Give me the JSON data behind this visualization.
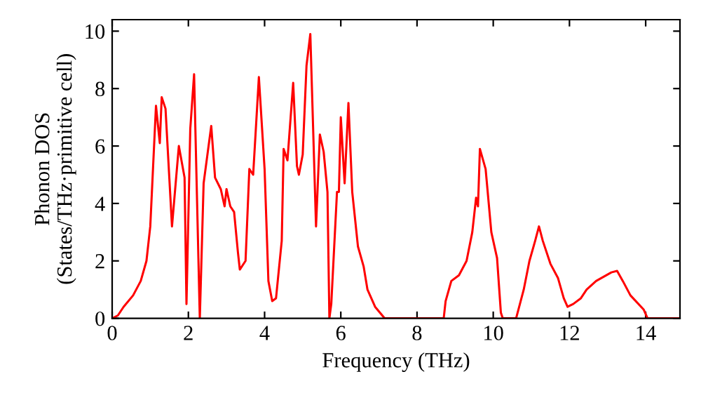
{
  "chart_data": {
    "type": "line",
    "xlabel": "Frequency (THz)",
    "ylabel": "Phonon DOS\n(States/THz·primitive cell)",
    "xlim": [
      0,
      14.9
    ],
    "ylim": [
      0,
      10.4
    ],
    "xticks": [
      0,
      2,
      4,
      6,
      8,
      10,
      12,
      14
    ],
    "yticks": [
      0,
      2,
      4,
      6,
      8,
      10
    ],
    "grid": false,
    "marker": "none",
    "line_style": "solid",
    "series": [
      {
        "color": "#ff0000",
        "x": [
          0,
          0.15,
          0.3,
          0.55,
          0.75,
          0.9,
          1.0,
          1.15,
          1.25,
          1.3,
          1.4,
          1.57,
          1.75,
          1.9,
          1.95,
          2.05,
          2.15,
          2.3,
          2.4,
          2.6,
          2.7,
          2.85,
          2.95,
          3.0,
          3.1,
          3.2,
          3.3,
          3.35,
          3.5,
          3.6,
          3.7,
          3.85,
          4.0,
          4.1,
          4.2,
          4.3,
          4.45,
          4.5,
          4.6,
          4.75,
          4.85,
          4.9,
          5.0,
          5.1,
          5.2,
          5.35,
          5.45,
          5.55,
          5.65,
          5.7,
          5.75,
          5.9,
          5.95,
          6.0,
          6.1,
          6.2,
          6.3,
          6.45,
          6.6,
          6.7,
          6.9,
          7.15,
          8.7,
          8.75,
          8.9,
          9.1,
          9.3,
          9.45,
          9.55,
          9.6,
          9.65,
          9.8,
          9.95,
          10.1,
          10.2,
          10.25,
          10.6,
          10.8,
          10.95,
          11.1,
          11.2,
          11.3,
          11.5,
          11.7,
          11.85,
          11.95,
          12.1,
          12.3,
          12.45,
          12.7,
          13.1,
          13.25,
          13.4,
          13.6,
          13.95,
          14.05,
          14.9
        ],
        "values": [
          0,
          0.1,
          0.4,
          0.8,
          1.3,
          2.0,
          3.2,
          7.4,
          6.1,
          7.7,
          7.3,
          3.2,
          6.0,
          4.9,
          0.5,
          6.6,
          8.5,
          0,
          4.7,
          6.7,
          4.9,
          4.5,
          3.9,
          4.5,
          3.9,
          3.7,
          2.3,
          1.7,
          2.0,
          5.2,
          5.0,
          8.4,
          5.2,
          1.3,
          0.6,
          0.7,
          2.7,
          5.9,
          5.5,
          8.2,
          5.3,
          5.0,
          5.7,
          8.8,
          9.9,
          3.2,
          6.4,
          5.8,
          4.4,
          0,
          0.5,
          4.4,
          4.4,
          7.0,
          4.7,
          7.5,
          4.4,
          2.5,
          1.8,
          1.0,
          0.4,
          0,
          0,
          0.6,
          1.3,
          1.5,
          2.0,
          3.0,
          4.2,
          3.9,
          5.9,
          5.2,
          3.0,
          2.1,
          0.2,
          0,
          0,
          1.0,
          2.0,
          2.7,
          3.2,
          2.7,
          1.9,
          1.4,
          0.7,
          0.4,
          0.5,
          0.7,
          1.0,
          1.3,
          1.6,
          1.65,
          1.3,
          0.8,
          0.3,
          0,
          0
        ]
      }
    ]
  }
}
